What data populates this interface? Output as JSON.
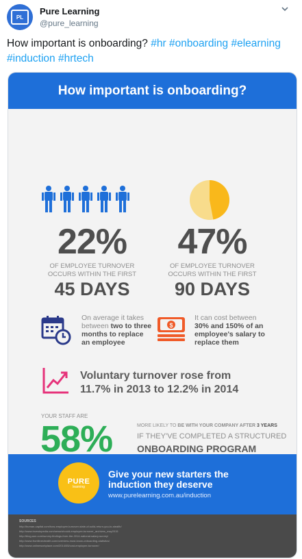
{
  "tweet": {
    "user_name": "Pure Learning",
    "user_handle": "@pure_learning",
    "avatar_text": "PL",
    "text_lead": "How important is onboarding?",
    "hashtags": [
      "#hr",
      "#onboarding",
      "#elearning",
      "#induction",
      "#hrtech"
    ]
  },
  "infographic": {
    "title": "How important is onboarding?",
    "stat1": {
      "value": "22%",
      "caption_line1": "OF EMPLOYEE TURNOVER",
      "caption_line2": "OCCURS WITHIN THE FIRST",
      "days": "45 DAYS"
    },
    "stat2": {
      "value": "47%",
      "caption_line1": "OF EMPLOYEE TURNOVER",
      "caption_line2": "OCCURS WITHIN THE FIRST",
      "days": "90 DAYS",
      "pie_fraction": 0.47
    },
    "replace_time": {
      "line1": "On average it takes",
      "line2_pre": "between ",
      "line2_bold": "two to three",
      "line3": "months to replace",
      "line4": "an employee"
    },
    "replace_cost": {
      "line1": "It can cost between",
      "line2": "30% and 150% of an",
      "line3": "employee's salary to",
      "line4": "replace them"
    },
    "trend": {
      "line1": "Voluntary turnover rose from",
      "line2": "11.7% in 2013 to 12.2% in 2014"
    },
    "staff": {
      "label": "YOUR STAFF ARE",
      "value": "58%",
      "likely_pre": "MORE LIKELY TO ",
      "likely_bold1": "BE WITH YOUR COMPANY AFTER ",
      "likely_bold2": "3 YEARS",
      "if_line": "IF THEY'VE COMPLETED A STRUCTURED",
      "program": "ONBOARDING PROGRAM"
    },
    "cta": {
      "logo_word": "PURE",
      "logo_sub": "learning",
      "line1": "Give your new starters the",
      "line2": "induction they deserve",
      "url": "www.purelearning.com.au/induction"
    },
    "sources": {
      "heading": "SOURCES",
      "lines": [
        "http://human-capital.com/how-employee-turnover-state-of-solid-return-you-to-stealth/",
        "http://www.investopedia.com/news/should-employee-turnover_archives_may2015",
        "http://blog.aon.com/survey-findings-from-the-2014-national-salary-survey/",
        "http://www.frontlineshealth.com/overview-must-know-onboarding-statistics/",
        "http://www.onlineworkplace.com/2014/05/cost-employee-turnover/"
      ]
    }
  },
  "colors": {
    "brand_blue": "#1e6fd9",
    "stat_blue": "#1e6fd9",
    "pie_orange": "#f9b81b",
    "pie_light": "#f8dc8c",
    "calendar_navy": "#2b3a8a",
    "money_orange": "#f05a28",
    "trend_pink": "#e6327a",
    "green": "#2dae57",
    "logo_yellow": "#f9c016"
  },
  "icons": [
    "person-icon",
    "pie-chart-icon",
    "calendar-clock-icon",
    "money-icon",
    "trend-line-icon",
    "more-icon"
  ]
}
